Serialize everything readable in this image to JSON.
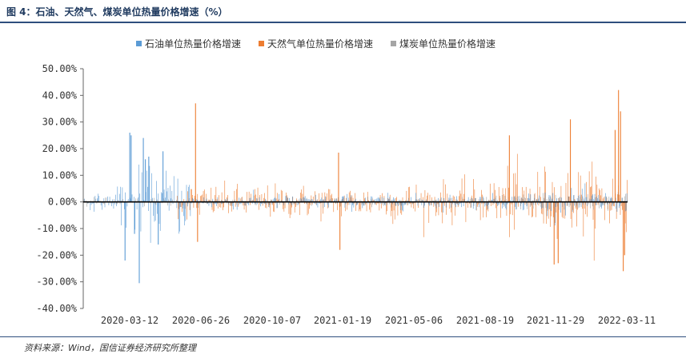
{
  "header": {
    "title": "图 4：石油、天然气、煤炭单位热量价格增速（%）"
  },
  "source": {
    "text": "资料来源：Wind，国信证券经济研究所整理"
  },
  "chart_data": {
    "type": "bar",
    "title": "",
    "xlabel": "",
    "ylabel": "",
    "ylim": [
      -40,
      50
    ],
    "yticks": [
      "50.00%",
      "40.00%",
      "30.00%",
      "20.00%",
      "10.00%",
      "0.00%",
      "-10.00%",
      "-20.00%",
      "-30.00%",
      "-40.00%"
    ],
    "ytick_values": [
      50,
      40,
      30,
      20,
      10,
      0,
      -10,
      -20,
      -30,
      -40
    ],
    "xticks": [
      "2020-03-12",
      "2020-06-26",
      "2020-10-07",
      "2021-01-19",
      "2021-05-06",
      "2021-08-19",
      "2021-11-29",
      "2022-03-11"
    ],
    "x_range": [
      "2020-01-02",
      "2022-03-15"
    ],
    "grid": false,
    "legend": "top",
    "series": [
      {
        "name": "石油单位热量价格增速",
        "color": "#5b9bd5"
      },
      {
        "name": "天然气单位热量价格增速",
        "color": "#ed7d31"
      },
      {
        "name": "煤炭单位热量价格增速",
        "color": "#a5a5a5"
      }
    ],
    "notable_points": [
      {
        "series": 0,
        "date": "2020-03-03",
        "value": -22
      },
      {
        "series": 0,
        "date": "2020-03-10",
        "value": 26
      },
      {
        "series": 0,
        "date": "2020-03-12",
        "value": 25
      },
      {
        "series": 0,
        "date": "2020-03-17",
        "value": -12
      },
      {
        "series": 0,
        "date": "2020-03-24",
        "value": -30.5
      },
      {
        "series": 0,
        "date": "2020-03-30",
        "value": 24
      },
      {
        "series": 0,
        "date": "2020-04-02",
        "value": 16
      },
      {
        "series": 0,
        "date": "2020-04-07",
        "value": 17
      },
      {
        "series": 0,
        "date": "2020-04-21",
        "value": -16
      },
      {
        "series": 0,
        "date": "2020-04-28",
        "value": 19
      },
      {
        "series": 1,
        "date": "2020-06-15",
        "value": 37
      },
      {
        "series": 1,
        "date": "2020-06-18",
        "value": -15
      },
      {
        "series": 1,
        "date": "2021-01-12",
        "value": 18.5
      },
      {
        "series": 1,
        "date": "2021-01-14",
        "value": -18
      },
      {
        "series": 1,
        "date": "2021-09-21",
        "value": 25
      },
      {
        "series": 1,
        "date": "2021-11-26",
        "value": -23.5
      },
      {
        "series": 1,
        "date": "2021-12-02",
        "value": -23
      },
      {
        "series": 1,
        "date": "2021-12-20",
        "value": 31
      },
      {
        "series": 1,
        "date": "2022-02-24",
        "value": 27
      },
      {
        "series": 1,
        "date": "2022-03-01",
        "value": 42
      },
      {
        "series": 1,
        "date": "2022-03-04",
        "value": 34
      },
      {
        "series": 1,
        "date": "2022-03-08",
        "value": -26
      },
      {
        "series": 1,
        "date": "2022-03-10",
        "value": -20
      }
    ]
  }
}
